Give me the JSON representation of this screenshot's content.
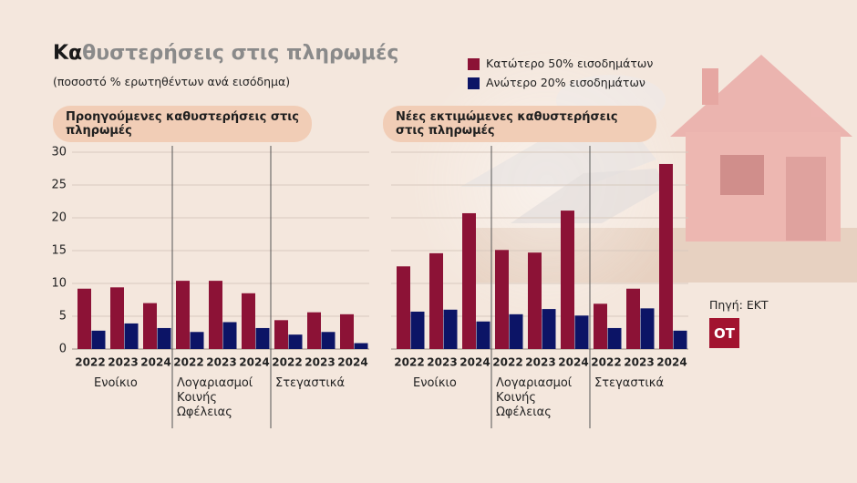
{
  "title": "Καθυστερήσεις στις πληρωμές",
  "subtitle": "(ποσοστό % ερωτηθέντων ανά εισόδημα)",
  "source": "Πηγή: ΕΚΤ",
  "logo": "OT",
  "chart_data": [
    {
      "type": "bar",
      "header": "Προηγούμενες καθυστερήσεις στις πληρωμές",
      "groups": [
        "Ενοίκιο",
        "Λογαριασμοί Κοινής Ωφέλειας",
        "Στεγαστικά"
      ],
      "categories": [
        "2022",
        "2023",
        "2024",
        "2022",
        "2023",
        "2024",
        "2022",
        "2023",
        "2024"
      ],
      "series": [
        {
          "name": "Κατώτερο 50% εισοδημάτων",
          "color": "#8c1236",
          "values": [
            9.2,
            9.4,
            7.0,
            10.4,
            10.4,
            8.5,
            4.4,
            5.6,
            5.3
          ]
        },
        {
          "name": "Ανώτερο 20% εισοδημάτων",
          "color": "#0c1466",
          "values": [
            2.8,
            3.9,
            3.2,
            2.6,
            4.1,
            3.2,
            2.2,
            2.6,
            0.9
          ]
        }
      ],
      "ylim": [
        0,
        30
      ],
      "yticks": [
        0,
        5,
        10,
        15,
        20,
        25,
        30
      ],
      "tick_labels": true,
      "grid": true
    },
    {
      "type": "bar",
      "header": "Νέες εκτιμώμενες καθυστερήσεις στις πληρωμές",
      "groups": [
        "Ενοίκιο",
        "Λογαριασμοί Κοινής Ωφέλειας",
        "Στεγαστικά"
      ],
      "categories": [
        "2022",
        "2023",
        "2024",
        "2022",
        "2023",
        "2024",
        "2022",
        "2023",
        "2024"
      ],
      "series": [
        {
          "name": "Κατώτερο 50% εισοδημάτων",
          "color": "#8c1236",
          "values": [
            12.6,
            14.6,
            20.7,
            15.1,
            14.7,
            21.1,
            6.9,
            9.2,
            28.2
          ]
        },
        {
          "name": "Ανώτερο 20% εισοδημάτων",
          "color": "#0c1466",
          "values": [
            5.7,
            6.0,
            4.2,
            5.3,
            6.1,
            5.1,
            3.2,
            6.2,
            2.8
          ]
        }
      ],
      "ylim": [
        0,
        30
      ],
      "yticks": [
        0,
        5,
        10,
        15,
        20,
        25,
        30
      ],
      "tick_labels": false,
      "grid": true
    }
  ]
}
